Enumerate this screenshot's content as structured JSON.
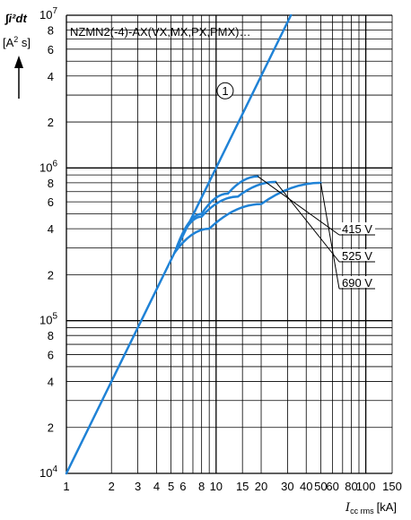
{
  "chart_data": {
    "type": "line",
    "title": "NZMN2(-4)-AX(VX,MX,PX,PMX)…",
    "xlabel": "I",
    "xlabel_sub": "cc rms",
    "xunit": "[kA]",
    "ylabel": "∫i²dt",
    "yunit": "[A",
    "yunit_sup": "2",
    "yunit_end": " s]",
    "xscale": "log",
    "yscale": "log",
    "xlim": [
      1,
      150
    ],
    "ylim": [
      10000,
      10000000
    ],
    "grid": true,
    "x_ticks": [
      {
        "v": 1,
        "t": "1"
      },
      {
        "v": 2,
        "t": "2"
      },
      {
        "v": 3,
        "t": "3"
      },
      {
        "v": 4,
        "t": "4"
      },
      {
        "v": 5,
        "t": "5"
      },
      {
        "v": 6,
        "t": "6"
      },
      {
        "v": 8,
        "t": "8"
      },
      {
        "v": 10,
        "t": "10"
      },
      {
        "v": 15,
        "t": "15"
      },
      {
        "v": 20,
        "t": "20"
      },
      {
        "v": 30,
        "t": "30"
      },
      {
        "v": 40,
        "t": "40"
      },
      {
        "v": 50,
        "t": "50"
      },
      {
        "v": 60,
        "t": "60"
      },
      {
        "v": 80,
        "t": "80"
      },
      {
        "v": 100,
        "t": "100"
      },
      {
        "v": 150,
        "t": "150"
      }
    ],
    "x_gridlines": [
      1,
      2,
      3,
      4,
      5,
      6,
      7,
      8,
      9,
      10,
      15,
      20,
      30,
      40,
      50,
      60,
      70,
      80,
      90,
      100,
      150
    ],
    "y_ticks": [
      {
        "v": 10000,
        "b": "10",
        "e": "4"
      },
      {
        "v": 20000,
        "t": "2"
      },
      {
        "v": 40000,
        "t": "4"
      },
      {
        "v": 60000,
        "t": "6"
      },
      {
        "v": 80000,
        "t": "8"
      },
      {
        "v": 100000,
        "b": "10",
        "e": "5"
      },
      {
        "v": 200000,
        "t": "2"
      },
      {
        "v": 400000,
        "t": "4"
      },
      {
        "v": 600000,
        "t": "6"
      },
      {
        "v": 800000,
        "t": "8"
      },
      {
        "v": 1000000,
        "b": "10",
        "e": "6"
      },
      {
        "v": 2000000,
        "t": "2"
      },
      {
        "v": 4000000,
        "t": "4"
      },
      {
        "v": 6000000,
        "t": "6"
      },
      {
        "v": 8000000,
        "t": "8"
      },
      {
        "v": 10000000,
        "b": "10",
        "e": "7"
      }
    ],
    "series": [
      {
        "x": [
          1,
          31.6
        ],
        "y": [
          10000,
          10000000
        ]
      },
      {
        "x": [
          5.3,
          8,
          12,
          19
        ],
        "y": [
          280000,
          500000,
          680000,
          880000
        ]
      },
      {
        "x": [
          5.3,
          8,
          14,
          25
        ],
        "y": [
          280000,
          480000,
          650000,
          810000
        ]
      },
      {
        "x": [
          5.3,
          9,
          20,
          50
        ],
        "y": [
          280000,
          400000,
          580000,
          800000
        ]
      }
    ],
    "annotations": [
      {
        "text": "1",
        "x": 11.5,
        "y": 3200000
      },
      {
        "text": "415 V",
        "leader_from": [
          19,
          880000
        ]
      },
      {
        "text": "525 V",
        "leader_from": [
          25,
          810000
        ]
      },
      {
        "text": "690 V",
        "leader_from": [
          50,
          800000
        ]
      }
    ],
    "line_color": "#1f82d6"
  }
}
